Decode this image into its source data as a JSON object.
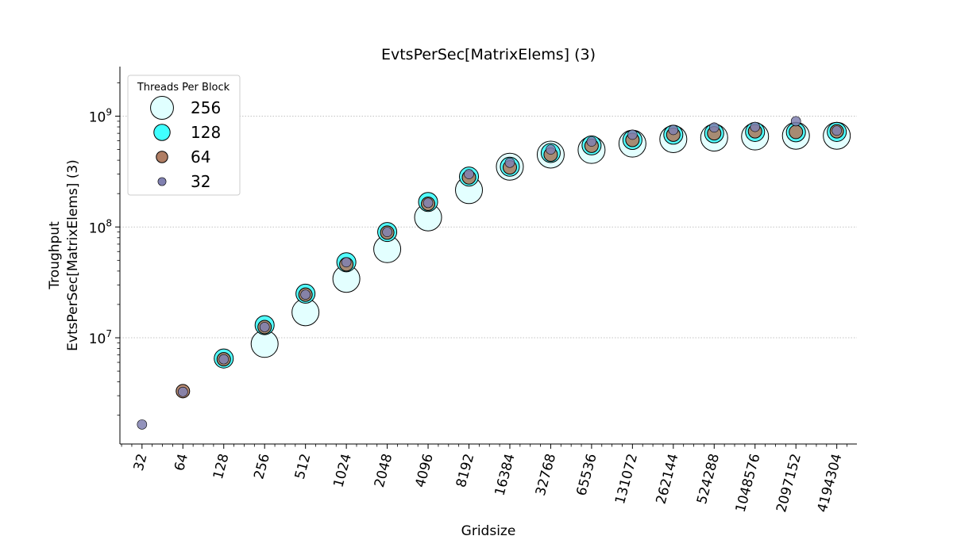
{
  "chart_data": {
    "type": "scatter",
    "title": "EvtsPerSec[MatrixElems] (3)",
    "xlabel": "Gridsize",
    "ylabel_lines": [
      "Troughput",
      "EvtsPerSec[MatrixElems] (3)"
    ],
    "x_scale": "log2",
    "y_scale": "log10",
    "ylim": [
      1100000,
      2800000000
    ],
    "xlim": [
      22,
      5900000
    ],
    "x_ticks": [
      32,
      64,
      128,
      256,
      512,
      1024,
      2048,
      4096,
      8192,
      16384,
      32768,
      65536,
      131072,
      262144,
      524288,
      1048576,
      2097152,
      4194304
    ],
    "y_ticks": [
      {
        "value": 10000000,
        "base": "10",
        "exp": "7"
      },
      {
        "value": 100000000,
        "base": "10",
        "exp": "8"
      },
      {
        "value": 1000000000,
        "base": "10",
        "exp": "9"
      }
    ],
    "grid": "y-major-dotted",
    "legend": {
      "title": "Threads Per Block",
      "placement": "top-left"
    },
    "series": [
      {
        "name": "256",
        "color": "#e0ffff",
        "marker_scale": 1.0,
        "points": [
          [
            256,
            8800000
          ],
          [
            512,
            17000000
          ],
          [
            1024,
            34000000
          ],
          [
            2048,
            63000000
          ],
          [
            4096,
            122000000
          ],
          [
            8192,
            215000000
          ],
          [
            16384,
            350000000
          ],
          [
            32768,
            450000000
          ],
          [
            65536,
            495000000
          ],
          [
            131072,
            565000000
          ],
          [
            262144,
            620000000
          ],
          [
            524288,
            640000000
          ],
          [
            1048576,
            655000000
          ],
          [
            2097152,
            665000000
          ],
          [
            4194304,
            665000000
          ]
        ]
      },
      {
        "name": "128",
        "color": "#40ffff",
        "marker_scale": 0.707,
        "points": [
          [
            128,
            6500000
          ],
          [
            256,
            13000000
          ],
          [
            512,
            25000000
          ],
          [
            1024,
            48000000
          ],
          [
            2048,
            90000000
          ],
          [
            4096,
            168000000
          ],
          [
            8192,
            285000000
          ],
          [
            16384,
            350000000
          ],
          [
            32768,
            465000000
          ],
          [
            65536,
            545000000
          ],
          [
            131072,
            610000000
          ],
          [
            262144,
            680000000
          ],
          [
            524288,
            700000000
          ],
          [
            1048576,
            720000000
          ],
          [
            2097152,
            715000000
          ],
          [
            4194304,
            720000000
          ]
        ]
      },
      {
        "name": "64",
        "color": "#b07e64",
        "marker_scale": 0.5,
        "points": [
          [
            64,
            3300000
          ],
          [
            128,
            6400000
          ],
          [
            256,
            12500000
          ],
          [
            512,
            24500000
          ],
          [
            1024,
            46000000
          ],
          [
            2048,
            89000000
          ],
          [
            4096,
            162000000
          ],
          [
            8192,
            280000000
          ],
          [
            16384,
            345000000
          ],
          [
            32768,
            450000000
          ],
          [
            65536,
            540000000
          ],
          [
            131072,
            610000000
          ],
          [
            262144,
            680000000
          ],
          [
            524288,
            700000000
          ],
          [
            1048576,
            730000000
          ],
          [
            2097152,
            720000000
          ],
          [
            4194304,
            730000000
          ]
        ]
      },
      {
        "name": "32",
        "color": "#8080b0",
        "marker_scale": 0.354,
        "points": [
          [
            32,
            1650000
          ],
          [
            64,
            3250000
          ],
          [
            128,
            6400000
          ],
          [
            256,
            12500000
          ],
          [
            512,
            24500000
          ],
          [
            1024,
            48000000
          ],
          [
            2048,
            90000000
          ],
          [
            4096,
            165000000
          ],
          [
            8192,
            300000000
          ],
          [
            16384,
            380000000
          ],
          [
            32768,
            500000000
          ],
          [
            65536,
            590000000
          ],
          [
            131072,
            680000000
          ],
          [
            262144,
            750000000
          ],
          [
            524288,
            790000000
          ],
          [
            1048576,
            800000000
          ],
          [
            2097152,
            900000000
          ],
          [
            4194304,
            740000000
          ]
        ]
      }
    ]
  }
}
